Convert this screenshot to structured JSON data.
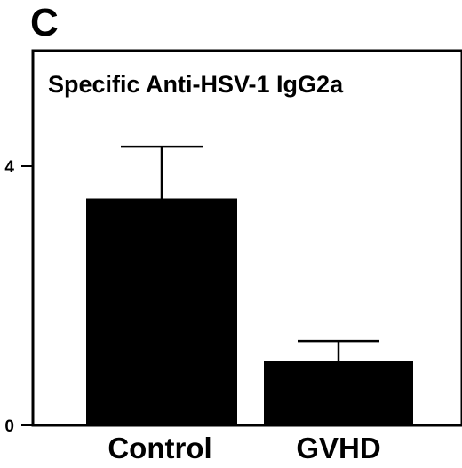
{
  "panel_label": "C",
  "chart_data": {
    "type": "bar",
    "title": "Specific Anti-HSV-1 IgG2a",
    "categories": [
      "Control",
      "GVHD"
    ],
    "values": [
      3.5,
      1.0
    ],
    "error_upper": [
      4.3,
      1.3
    ],
    "yticks": [
      "0",
      "4"
    ],
    "ylim": [
      0,
      6.2
    ],
    "xlabel": "",
    "ylabel": "",
    "grid": false,
    "legend": "none"
  }
}
